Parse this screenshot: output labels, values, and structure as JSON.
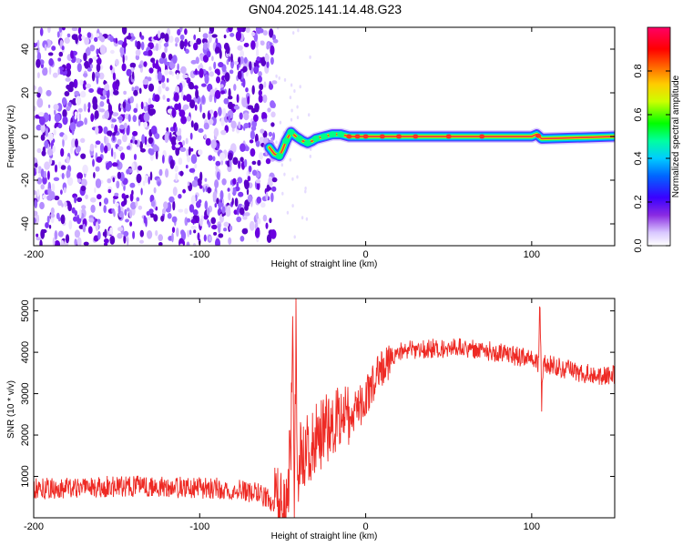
{
  "title": "GN04.2025.141.14.48.G23",
  "colors": {
    "snr_line": "#ee2a24",
    "signal_core": "#e8344a",
    "noise_purple": "#6a00e0",
    "axis": "#000000"
  },
  "chart_data": [
    {
      "type": "heatmap",
      "xlabel": "Height of straight line (km)",
      "ylabel": "Frequency (Hz)",
      "xlim": [
        -200,
        150
      ],
      "ylim": [
        -50,
        50
      ],
      "xticks": [
        -200,
        -100,
        0,
        100
      ],
      "yticks": [
        -40,
        -20,
        0,
        20,
        40
      ],
      "xtick_labels": [
        "-200",
        "-100",
        "0",
        "100"
      ],
      "ytick_labels": [
        "-40",
        "-20",
        "0",
        "20",
        "40"
      ],
      "noise_region_x": [
        -200,
        -55
      ],
      "signal_trace": {
        "x": [
          -58,
          -55,
          -52,
          -50,
          -48,
          -45,
          -42,
          -40,
          -38,
          -35,
          -32,
          -30,
          -25,
          -20,
          -15,
          -10,
          -5,
          0,
          20,
          50,
          100,
          103,
          106,
          150
        ],
        "frequency": [
          -5,
          -8,
          -9,
          -6,
          -2,
          2,
          0,
          -1,
          -2,
          -3,
          -2,
          -1,
          0,
          1,
          1,
          0,
          0,
          0,
          0,
          0,
          0,
          1,
          -1,
          0
        ]
      },
      "colorbar": {
        "label": "Normalized spectral amplitude",
        "range": [
          0,
          1
        ],
        "ticks": [
          0.0,
          0.2,
          0.4,
          0.6,
          0.8
        ],
        "tick_labels": [
          "0.0",
          "0.2",
          "0.4",
          "0.6",
          "0.8"
        ],
        "colormap": "rainbow (white-purple-blue-cyan-green-yellow-orange-red-pink)"
      }
    },
    {
      "type": "line",
      "xlabel": "Height of straight line (km)",
      "ylabel": "SNR (10 * v/v)",
      "xlim": [
        -200,
        150
      ],
      "ylim": [
        0,
        5300
      ],
      "xticks": [
        -200,
        -100,
        0,
        100
      ],
      "yticks": [
        1000,
        2000,
        3000,
        4000,
        5000
      ],
      "xtick_labels": [
        "-200",
        "-100",
        "0",
        "100"
      ],
      "ytick_labels": [
        "1000",
        "2000",
        "3000",
        "4000",
        "5000"
      ],
      "series": [
        {
          "x": [
            -200,
            -180,
            -160,
            -140,
            -120,
            -100,
            -80,
            -65,
            -55,
            -48,
            -45,
            -44,
            -43,
            -42,
            -41,
            -40,
            -38,
            -35,
            -30,
            -25,
            -20,
            -15,
            -10,
            -5,
            0,
            5,
            10,
            15,
            20,
            25,
            30,
            40,
            50,
            60,
            70,
            80,
            90,
            100,
            104,
            105,
            106,
            107,
            108,
            110,
            120,
            130,
            140,
            150
          ],
          "y": [
            700,
            720,
            750,
            760,
            740,
            720,
            700,
            600,
            350,
            200,
            1800,
            4500,
            500,
            4600,
            300,
            1500,
            1400,
            1600,
            1900,
            2100,
            2400,
            2500,
            2400,
            2600,
            2900,
            3300,
            3600,
            3850,
            4000,
            4050,
            4050,
            4100,
            4100,
            4100,
            4050,
            4000,
            3900,
            3850,
            3700,
            5300,
            2800,
            3800,
            3700,
            3700,
            3600,
            3500,
            3450,
            3450
          ]
        }
      ]
    }
  ]
}
